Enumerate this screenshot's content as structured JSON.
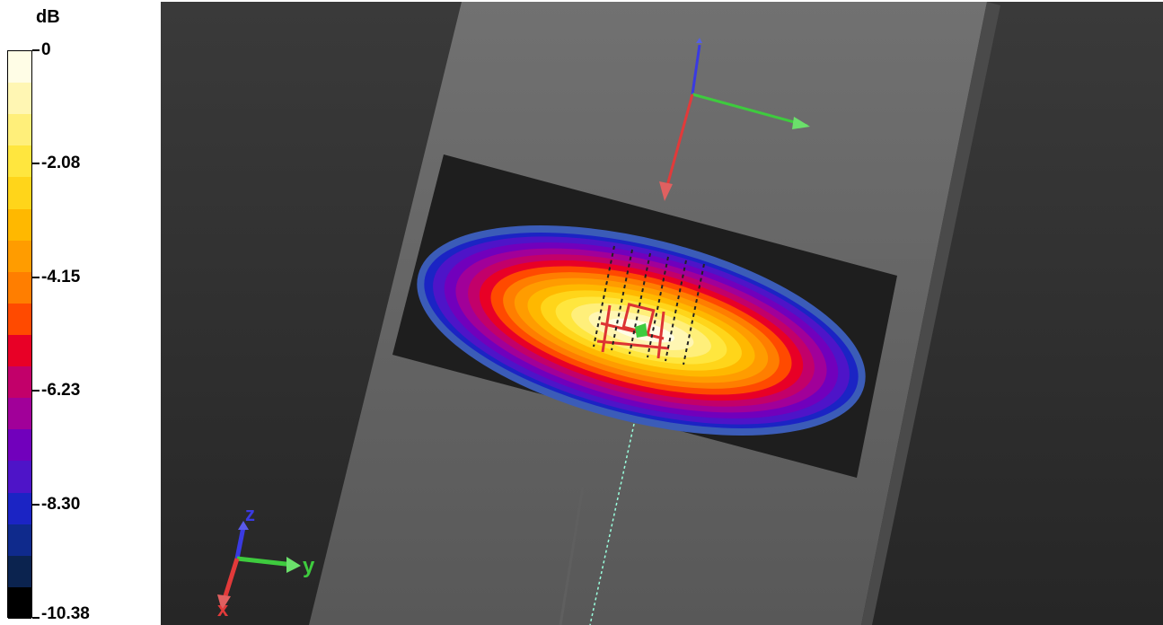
{
  "legend": {
    "unit": "dB",
    "ticks": [
      "0",
      "-2.08",
      "-4.15",
      "-6.23",
      "-8.30",
      "-10.38"
    ],
    "colors": [
      "#fffde6",
      "#fff6b3",
      "#ffef7a",
      "#ffe63e",
      "#ffd51a",
      "#ffb800",
      "#ff9c00",
      "#ff7e00",
      "#ff4a00",
      "#e80026",
      "#c2006a",
      "#a10099",
      "#7100bc",
      "#4e14c8",
      "#1b24c4",
      "#0f2a8c",
      "#0b234f",
      "#000000"
    ]
  },
  "axes_triad": {
    "z_label": "z",
    "y_label": "y",
    "x_label": "x",
    "colors": {
      "x": "#e23a3a",
      "y": "#3ecb3e",
      "z": "#3a3ae2"
    }
  }
}
